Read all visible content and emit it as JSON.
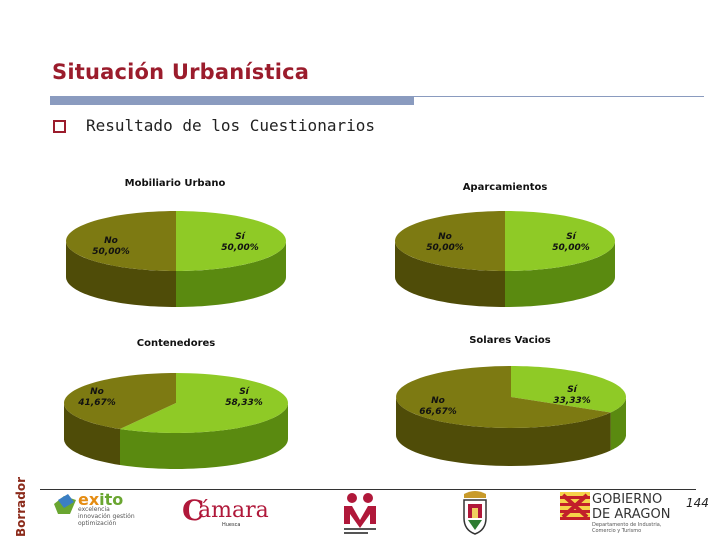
{
  "slide": {
    "title": "Situación Urbanística",
    "bullet": "Resultado de los Cuestionarios",
    "page_number": "144",
    "watermark": "Borrador"
  },
  "colors": {
    "title": "#9b1c2c",
    "bar": "#8a9bbf",
    "si_top": "#8fca26",
    "si_side": "#5a8a10",
    "no_top": "#7d7a12",
    "no_side": "#4f4c08"
  },
  "chart_data": [
    {
      "type": "pie",
      "title": "Mobiliario Urbano",
      "categories": [
        "No",
        "Sí"
      ],
      "values": [
        50.0,
        50.0
      ],
      "labels": [
        "No\n50,00%",
        "Sí\n50,00%"
      ]
    },
    {
      "type": "pie",
      "title": "Aparcamientos",
      "categories": [
        "No",
        "Sí"
      ],
      "values": [
        50.0,
        50.0
      ],
      "labels": [
        "No\n50,00%",
        "Sí\n50,00%"
      ]
    },
    {
      "type": "pie",
      "title": "Contenedores",
      "categories": [
        "No",
        "Sí"
      ],
      "values": [
        41.67,
        58.33
      ],
      "labels": [
        "No\n41,67%",
        "Sí\n58,33%"
      ]
    },
    {
      "type": "pie",
      "title": "Solares Vacios",
      "categories": [
        "No",
        "Sí"
      ],
      "values": [
        66.67,
        33.33
      ],
      "labels": [
        "No\n66,67%",
        "Sí\n33,33%"
      ]
    }
  ],
  "footer": {
    "logos": [
      {
        "name": "exito-logo",
        "text_main_a": "ex",
        "text_main_b": "ito",
        "text_sub": "excelencia innovación gestión optimización"
      },
      {
        "name": "camara-logo",
        "text": "ámara",
        "initial": "C",
        "sub": "Huesca"
      },
      {
        "name": "monegros-logo"
      },
      {
        "name": "coat-of-arms-logo"
      },
      {
        "name": "gobierno-aragon-logo",
        "text": "GOBIERNO\nDE ARAGON",
        "sub": "Departamento de Industria, Comercio y Turismo"
      }
    ]
  }
}
